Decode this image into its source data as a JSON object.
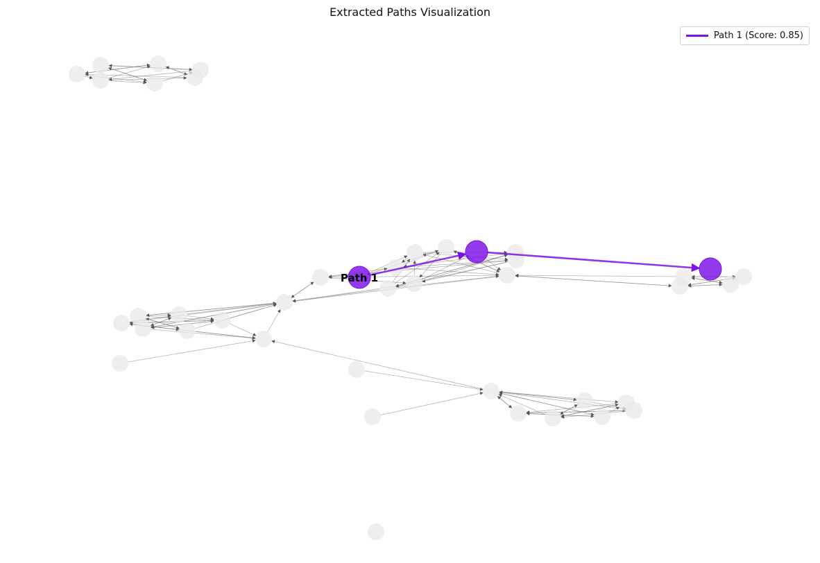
{
  "title": "Extracted Paths Visualization",
  "colors": {
    "path": "#7b10e8",
    "node": "#e8e8e8",
    "edge": "#555555",
    "background": "#ffffff"
  },
  "legend": {
    "placement": "top-right",
    "entries": [
      {
        "label": "Path 1 (Score: 0.85)",
        "color": "#7b10e8"
      }
    ]
  },
  "paths": [
    {
      "label": "Path 1",
      "score": 0.85,
      "node_count": 3,
      "color": "#7b10e8"
    }
  ]
}
